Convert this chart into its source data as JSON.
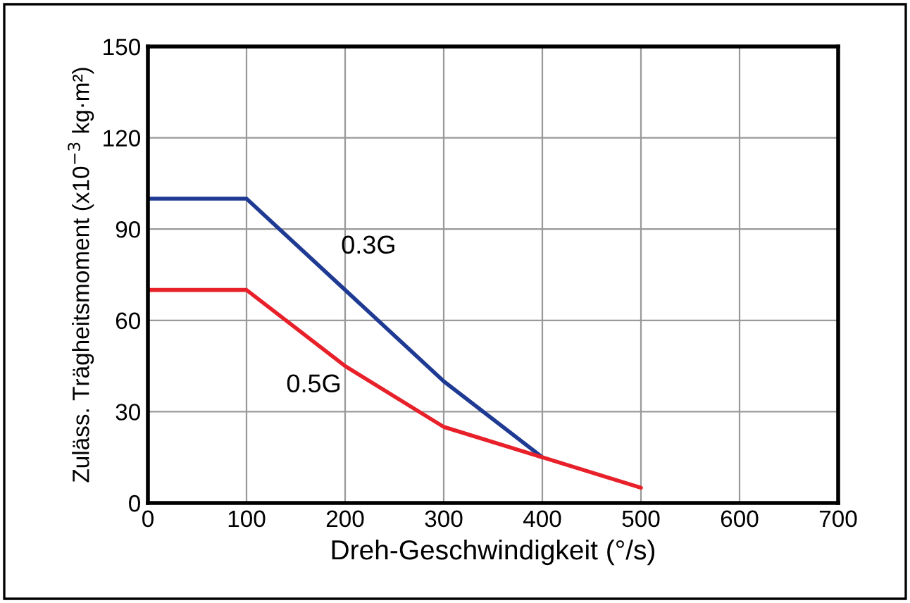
{
  "chart_data": {
    "type": "line",
    "xlabel": "Dreh-Geschwindigkeit (°/s)",
    "ylabel": "Zuläss. Trägheitsmoment (x10$^{−3}$ kg·m²)",
    "series": [
      {
        "name": "0.3G",
        "color": "#1f3a93",
        "x": [
          0,
          100,
          300,
          400
        ],
        "values": [
          100,
          100,
          40,
          15
        ]
      },
      {
        "name": "0.5G",
        "color": "#e8202a",
        "x": [
          0,
          100,
          200,
          300,
          400,
          500
        ],
        "values": [
          70,
          70,
          45,
          25,
          15,
          5
        ]
      }
    ],
    "xlim": [
      0,
      700
    ],
    "xticks": [
      0,
      100,
      200,
      300,
      400,
      500,
      600,
      700
    ],
    "ylim": [
      0,
      150
    ],
    "yticks": [
      0,
      30,
      60,
      90,
      120,
      150
    ],
    "grid": true,
    "legend": false
  }
}
